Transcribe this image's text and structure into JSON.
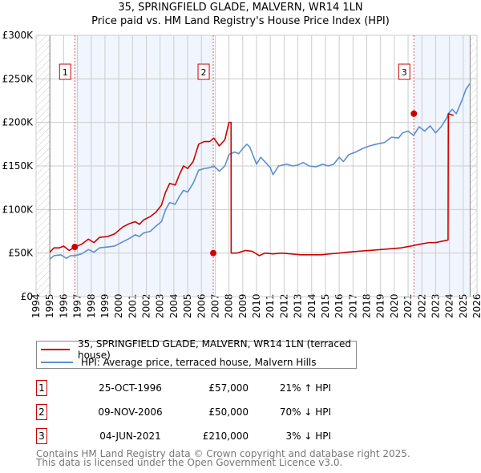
{
  "chart_data": {
    "type": "line",
    "title": "35, SPRINGFIELD GLADE, MALVERN, WR14 1LN",
    "subtitle": "Price paid vs. HM Land Registry's House Price Index (HPI)",
    "xlim": [
      1994,
      2026
    ],
    "ylim": [
      0,
      300000
    ],
    "x_ticks": [
      "1994",
      "1995",
      "1996",
      "1997",
      "1998",
      "1999",
      "2000",
      "2001",
      "2002",
      "2003",
      "2004",
      "2005",
      "2006",
      "2007",
      "2008",
      "2009",
      "2010",
      "2011",
      "2012",
      "2013",
      "2014",
      "2015",
      "2016",
      "2017",
      "2018",
      "2019",
      "2020",
      "2021",
      "2022",
      "2023",
      "2024",
      "2025",
      "2026"
    ],
    "y_ticks": [
      {
        "v": 0,
        "label": "£0"
      },
      {
        "v": 50000,
        "label": "£50K"
      },
      {
        "v": 100000,
        "label": "£100K"
      },
      {
        "v": 150000,
        "label": "£150K"
      },
      {
        "v": 200000,
        "label": "£200K"
      },
      {
        "v": 250000,
        "label": "£250K"
      },
      {
        "v": 300000,
        "label": "£300K"
      }
    ],
    "grid": true,
    "data_range": [
      1995,
      2025.5
    ],
    "shaded_periods": [
      [
        1996.81,
        2006.86
      ],
      [
        2021.42,
        2025.5
      ]
    ],
    "series": [
      {
        "name": "35, SPRINGFIELD GLADE, MALVERN, WR14 1LN (terraced house)",
        "color": "#cc0000",
        "points": [
          [
            1995,
            51000
          ],
          [
            1995.3,
            56000
          ],
          [
            1995.7,
            56000
          ],
          [
            1996,
            58000
          ],
          [
            1996.4,
            53000
          ],
          [
            1996.81,
            57000
          ],
          [
            1997.3,
            60000
          ],
          [
            1997.8,
            66000
          ],
          [
            1998.2,
            62000
          ],
          [
            1998.6,
            68000
          ],
          [
            1999.2,
            69000
          ],
          [
            1999.7,
            72000
          ],
          [
            2000.3,
            80000
          ],
          [
            2000.8,
            84000
          ],
          [
            2001.2,
            86000
          ],
          [
            2001.5,
            83000
          ],
          [
            2001.8,
            88000
          ],
          [
            2002.3,
            92000
          ],
          [
            2002.7,
            97000
          ],
          [
            2003.1,
            105000
          ],
          [
            2003.4,
            120000
          ],
          [
            2003.7,
            130000
          ],
          [
            2004.1,
            128000
          ],
          [
            2004.4,
            140000
          ],
          [
            2004.7,
            150000
          ],
          [
            2005,
            147000
          ],
          [
            2005.4,
            155000
          ],
          [
            2005.8,
            175000
          ],
          [
            2006.2,
            178000
          ],
          [
            2006.6,
            178000
          ],
          [
            2006.9,
            182000
          ],
          [
            2007.3,
            173000
          ],
          [
            2007.7,
            180000
          ],
          [
            2008.0,
            200000
          ],
          [
            2008.15,
            200000
          ],
          [
            2008.16,
            50000
          ],
          [
            2008.6,
            50000
          ],
          [
            2009.2,
            53000
          ],
          [
            2009.7,
            52000
          ],
          [
            2010.2,
            47000
          ],
          [
            2010.6,
            50000
          ],
          [
            2011.2,
            49000
          ],
          [
            2011.8,
            50000
          ],
          [
            2012.5,
            49000
          ],
          [
            2013.2,
            48000
          ],
          [
            2014,
            48000
          ],
          [
            2014.7,
            48000
          ],
          [
            2015.3,
            49000
          ],
          [
            2016,
            50000
          ],
          [
            2016.6,
            51000
          ],
          [
            2017.3,
            52000
          ],
          [
            2018.2,
            53000
          ],
          [
            2019,
            54000
          ],
          [
            2019.8,
            55000
          ],
          [
            2020.5,
            56000
          ],
          [
            2021.2,
            58000
          ],
          [
            2021.8,
            60000
          ],
          [
            2022.5,
            62000
          ],
          [
            2023,
            62000
          ],
          [
            2023.6,
            64000
          ],
          [
            2023.9,
            65000
          ],
          [
            2023.92,
            210000
          ],
          [
            2024.3,
            208000
          ]
        ],
        "sales_note": "sale points"
      },
      {
        "name": "HPI: Average price, terraced house, Malvern Hills",
        "color": "#5b8fd0",
        "points": [
          [
            1995,
            43000
          ],
          [
            1995.3,
            47000
          ],
          [
            1995.8,
            48000
          ],
          [
            1996.2,
            44000
          ],
          [
            1996.5,
            47000
          ],
          [
            1996.81,
            47000
          ],
          [
            1997.3,
            49000
          ],
          [
            1997.8,
            54000
          ],
          [
            1998.2,
            51000
          ],
          [
            1998.6,
            56000
          ],
          [
            1999.2,
            57000
          ],
          [
            1999.7,
            58000
          ],
          [
            2000.3,
            63000
          ],
          [
            2000.8,
            67000
          ],
          [
            2001.2,
            71000
          ],
          [
            2001.5,
            69000
          ],
          [
            2001.8,
            73000
          ],
          [
            2002.3,
            75000
          ],
          [
            2002.7,
            81000
          ],
          [
            2003.1,
            86000
          ],
          [
            2003.4,
            100000
          ],
          [
            2003.7,
            108000
          ],
          [
            2004.1,
            106000
          ],
          [
            2004.4,
            115000
          ],
          [
            2004.7,
            122000
          ],
          [
            2005,
            120000
          ],
          [
            2005.4,
            130000
          ],
          [
            2005.8,
            145000
          ],
          [
            2006.2,
            147000
          ],
          [
            2006.6,
            148000
          ],
          [
            2006.9,
            150000
          ],
          [
            2007.3,
            144000
          ],
          [
            2007.7,
            150000
          ],
          [
            2008.0,
            163000
          ],
          [
            2008.4,
            166000
          ],
          [
            2008.7,
            164000
          ],
          [
            2009.0,
            170000
          ],
          [
            2009.3,
            175000
          ],
          [
            2009.5,
            172000
          ],
          [
            2009.8,
            160000
          ],
          [
            2010,
            152000
          ],
          [
            2010.3,
            160000
          ],
          [
            2010.6,
            155000
          ],
          [
            2011,
            148000
          ],
          [
            2011.2,
            140000
          ],
          [
            2011.6,
            150000
          ],
          [
            2012.2,
            152000
          ],
          [
            2012.6,
            150000
          ],
          [
            2013,
            151000
          ],
          [
            2013.4,
            154000
          ],
          [
            2013.8,
            150000
          ],
          [
            2014.3,
            149000
          ],
          [
            2014.8,
            152000
          ],
          [
            2015.2,
            150000
          ],
          [
            2015.6,
            152000
          ],
          [
            2016,
            160000
          ],
          [
            2016.3,
            155000
          ],
          [
            2016.7,
            163000
          ],
          [
            2017.2,
            166000
          ],
          [
            2017.7,
            170000
          ],
          [
            2018.2,
            173000
          ],
          [
            2018.7,
            175000
          ],
          [
            2019.3,
            177000
          ],
          [
            2019.8,
            183000
          ],
          [
            2020.3,
            182000
          ],
          [
            2020.6,
            188000
          ],
          [
            2021,
            190000
          ],
          [
            2021.4,
            185000
          ],
          [
            2021.8,
            195000
          ],
          [
            2022.2,
            190000
          ],
          [
            2022.6,
            196000
          ],
          [
            2023,
            188000
          ],
          [
            2023.4,
            195000
          ],
          [
            2023.8,
            205000
          ],
          [
            2023.92,
            210000
          ],
          [
            2024.2,
            215000
          ],
          [
            2024.5,
            210000
          ],
          [
            2024.9,
            225000
          ],
          [
            2025.2,
            238000
          ],
          [
            2025.5,
            245000
          ]
        ]
      }
    ],
    "markers": [
      {
        "label": "1",
        "x": 1996.81,
        "y": 57000
      },
      {
        "label": "2",
        "x": 2006.86,
        "y": 50000
      },
      {
        "label": "3",
        "x": 2021.42,
        "y": 210000
      }
    ]
  },
  "legend": {
    "property": "35, SPRINGFIELD GLADE, MALVERN, WR14 1LN (terraced house)",
    "hpi": "HPI: Average price, terraced house, Malvern Hills"
  },
  "transactions": [
    {
      "num": "1",
      "date": "25-OCT-1996",
      "price": "£57,000",
      "hpi": "21% ↑ HPI"
    },
    {
      "num": "2",
      "date": "09-NOV-2006",
      "price": "£50,000",
      "hpi": "70% ↓ HPI"
    },
    {
      "num": "3",
      "date": "04-JUN-2021",
      "price": "£210,000",
      "hpi": "3% ↓ HPI"
    }
  ],
  "footer": {
    "line1": "Contains HM Land Registry data © Crown copyright and database right 2025.",
    "line2": "This data is licensed under the Open Government Licence v3.0."
  }
}
